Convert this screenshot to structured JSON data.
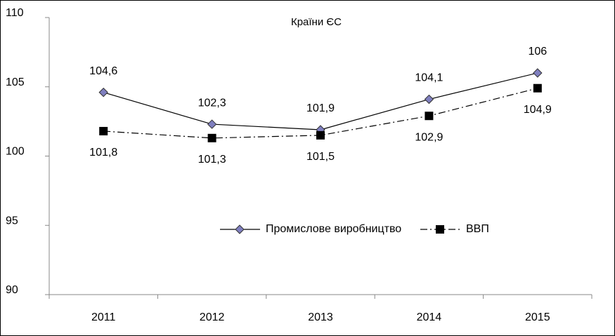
{
  "chart_data": {
    "type": "line",
    "title": "Країни ЄС",
    "categories": [
      "2011",
      "2012",
      "2013",
      "2014",
      "2015"
    ],
    "series": [
      {
        "name": "Промислове виробництво",
        "color": "#7f7fbf",
        "marker": "diamond",
        "line": "solid",
        "values": [
          104.6,
          102.3,
          101.9,
          104.1,
          106
        ],
        "value_labels": [
          "104,6",
          "102,3",
          "101,9",
          "104,1",
          "106"
        ],
        "label_position": "above"
      },
      {
        "name": "ВВП",
        "color": "#000000",
        "marker": "square",
        "line": "dashdot",
        "values": [
          101.8,
          101.3,
          101.5,
          102.9,
          104.9
        ],
        "value_labels": [
          "101,8",
          "101,3",
          "101,5",
          "102,9",
          "104,9"
        ],
        "label_position": "below"
      }
    ],
    "ylim": [
      90,
      110
    ],
    "yticks": [
      90,
      95,
      100,
      105,
      110
    ],
    "grid": false
  }
}
